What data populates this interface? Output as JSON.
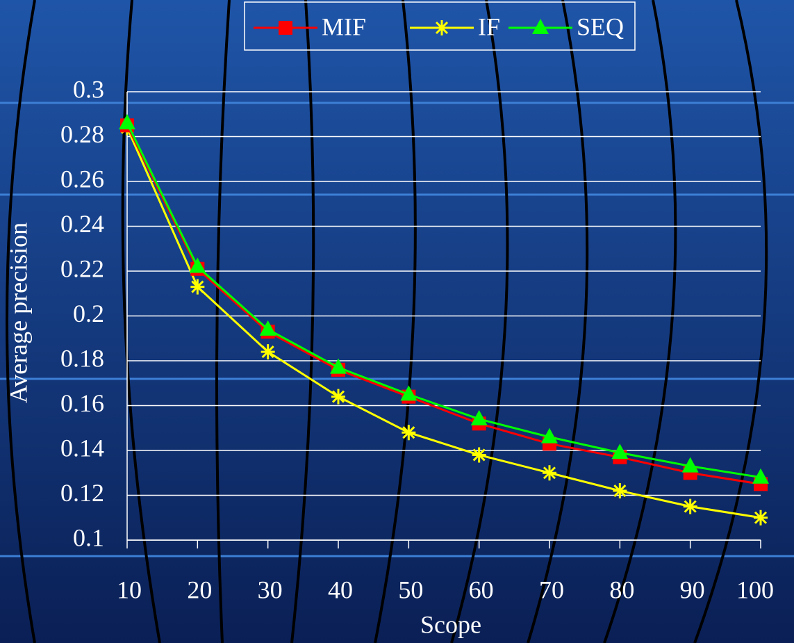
{
  "chart_data": {
    "type": "line",
    "x_label": "Scope",
    "y_label": "Average precision",
    "x": [
      10,
      20,
      30,
      40,
      50,
      60,
      70,
      80,
      90,
      100
    ],
    "xlim": [
      10,
      100
    ],
    "xticks": [
      10,
      20,
      30,
      40,
      50,
      60,
      70,
      80,
      90,
      100
    ],
    "ylim": [
      0.1,
      0.3
    ],
    "yticks": [
      0.1,
      0.12,
      0.14,
      0.16,
      0.18,
      0.2,
      0.22,
      0.24,
      0.26,
      0.28,
      0.3
    ],
    "grid": true,
    "legend": "top",
    "series": [
      {
        "name": "MIF",
        "color": "#ff0000",
        "marker": "square",
        "values": [
          0.285,
          0.221,
          0.193,
          0.176,
          0.164,
          0.152,
          0.143,
          0.137,
          0.13,
          0.125
        ]
      },
      {
        "name": "IF",
        "color": "#ffff00",
        "marker": "asterisk",
        "values": [
          0.284,
          0.213,
          0.184,
          0.164,
          0.148,
          0.138,
          0.13,
          0.122,
          0.115,
          0.11
        ]
      },
      {
        "name": "SEQ",
        "color": "#00ff00",
        "marker": "triangle",
        "values": [
          0.286,
          0.222,
          0.194,
          0.177,
          0.165,
          0.154,
          0.146,
          0.139,
          0.133,
          0.128
        ]
      }
    ]
  }
}
